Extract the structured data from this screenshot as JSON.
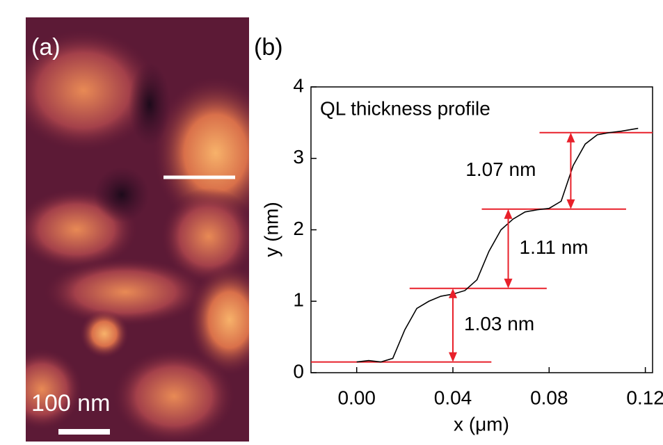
{
  "image_panel": {
    "label": "(a)",
    "scale_bar": "100 nm"
  },
  "chart_data": {
    "type": "line",
    "panel_label": "(b)",
    "title": "QL thickness profile",
    "xlabel": "x (μm)",
    "ylabel": "y (nm)",
    "x": [
      0,
      0.005,
      0.01,
      0.015,
      0.02,
      0.025,
      0.03,
      0.035,
      0.04,
      0.045,
      0.05,
      0.055,
      0.06,
      0.065,
      0.07,
      0.075,
      0.08,
      0.085,
      0.09,
      0.095,
      0.1,
      0.105,
      0.11,
      0.117
    ],
    "series": [
      {
        "color": "#000000",
        "values": [
          0.15,
          0.17,
          0.15,
          0.2,
          0.6,
          0.9,
          1.0,
          1.07,
          1.1,
          1.15,
          1.3,
          1.7,
          2.0,
          2.15,
          2.25,
          2.28,
          2.3,
          2.4,
          2.9,
          3.2,
          3.33,
          3.36,
          3.38,
          3.42
        ]
      }
    ],
    "xlim": [
      -0.019,
      0.123
    ],
    "ylim": [
      0,
      4
    ],
    "xticks": [
      {
        "value": 0,
        "label": "0.00"
      },
      {
        "value": 0.04,
        "label": "0.04"
      },
      {
        "value": 0.08,
        "label": "0.08"
      },
      {
        "value": 0.12,
        "label": "0.12"
      }
    ],
    "yticks": [
      0,
      1,
      2,
      3,
      4
    ],
    "annotation_color": "#e8202a",
    "levels": [
      {
        "y": 0.15,
        "x0": -0.019,
        "x1": 0.056
      },
      {
        "y": 1.18,
        "x0": 0.022,
        "x1": 0.079
      },
      {
        "y": 2.29,
        "x0": 0.052,
        "x1": 0.112
      },
      {
        "y": 3.36,
        "x0": 0.076,
        "x1": 0.123
      }
    ],
    "steps": [
      {
        "x": 0.04,
        "y0": 0.15,
        "y1": 1.18,
        "label": "1.03 nm"
      },
      {
        "x": 0.063,
        "y0": 1.18,
        "y1": 2.29,
        "label": "1.11 nm"
      },
      {
        "x": 0.089,
        "y0": 2.29,
        "y1": 3.36,
        "label": "1.07 nm"
      }
    ]
  }
}
